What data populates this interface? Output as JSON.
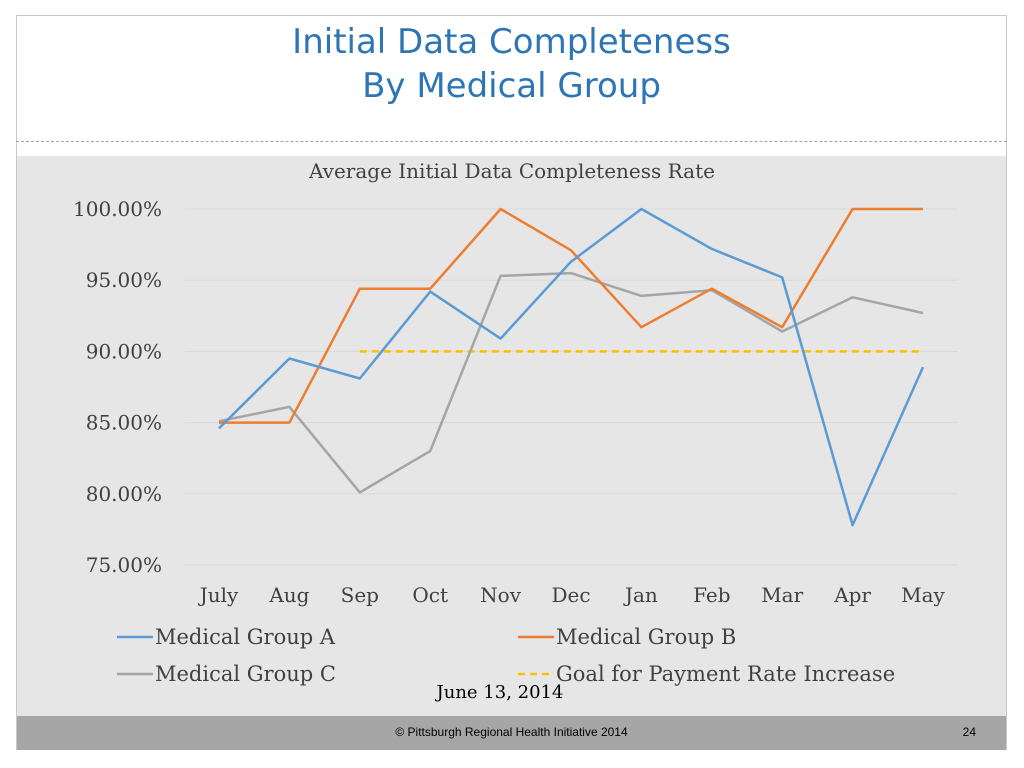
{
  "slide": {
    "title_line1": "Initial Data Completeness",
    "title_line2": "By Medical Group",
    "date": "June 13, 2014",
    "footer": "© Pittsburgh Regional Health Initiative  2014",
    "page_number": "24"
  },
  "chart_data": {
    "type": "line",
    "title": "Average Initial Data Completeness Rate",
    "xlabel": "",
    "ylabel": "",
    "categories": [
      "July",
      "Aug",
      "Sep",
      "Oct",
      "Nov",
      "Dec",
      "Jan",
      "Feb",
      "Mar",
      "Apr",
      "May"
    ],
    "ylim": [
      75,
      100
    ],
    "yticks": [
      100,
      95,
      90,
      85,
      80,
      75
    ],
    "ytick_labels": [
      "100.00%",
      "95.00%",
      "90.00%",
      "85.00%",
      "80.00%",
      "75.00%"
    ],
    "grid": true,
    "legend_position": "bottom",
    "series": [
      {
        "name": "Medical Group A",
        "color": "#5b9bd5",
        "dashed": false,
        "values": [
          84.6,
          89.5,
          88.1,
          94.2,
          90.9,
          96.3,
          100.0,
          97.2,
          95.2,
          77.8,
          88.9
        ]
      },
      {
        "name": "Medical Group B",
        "color": "#ed7d31",
        "dashed": false,
        "values": [
          85.0,
          85.0,
          94.4,
          94.4,
          100.0,
          97.1,
          91.7,
          94.4,
          91.7,
          100.0,
          100.0
        ]
      },
      {
        "name": "Medical Group C",
        "color": "#a5a5a5",
        "dashed": false,
        "values": [
          85.1,
          86.1,
          80.1,
          83.0,
          95.3,
          95.5,
          93.9,
          94.3,
          91.4,
          93.8,
          92.7
        ]
      },
      {
        "name": "Goal for Payment Rate Increase",
        "color": "#ffc000",
        "dashed": true,
        "values": [
          null,
          null,
          90.0,
          90.0,
          90.0,
          90.0,
          90.0,
          90.0,
          90.0,
          90.0,
          90.0
        ]
      }
    ]
  }
}
